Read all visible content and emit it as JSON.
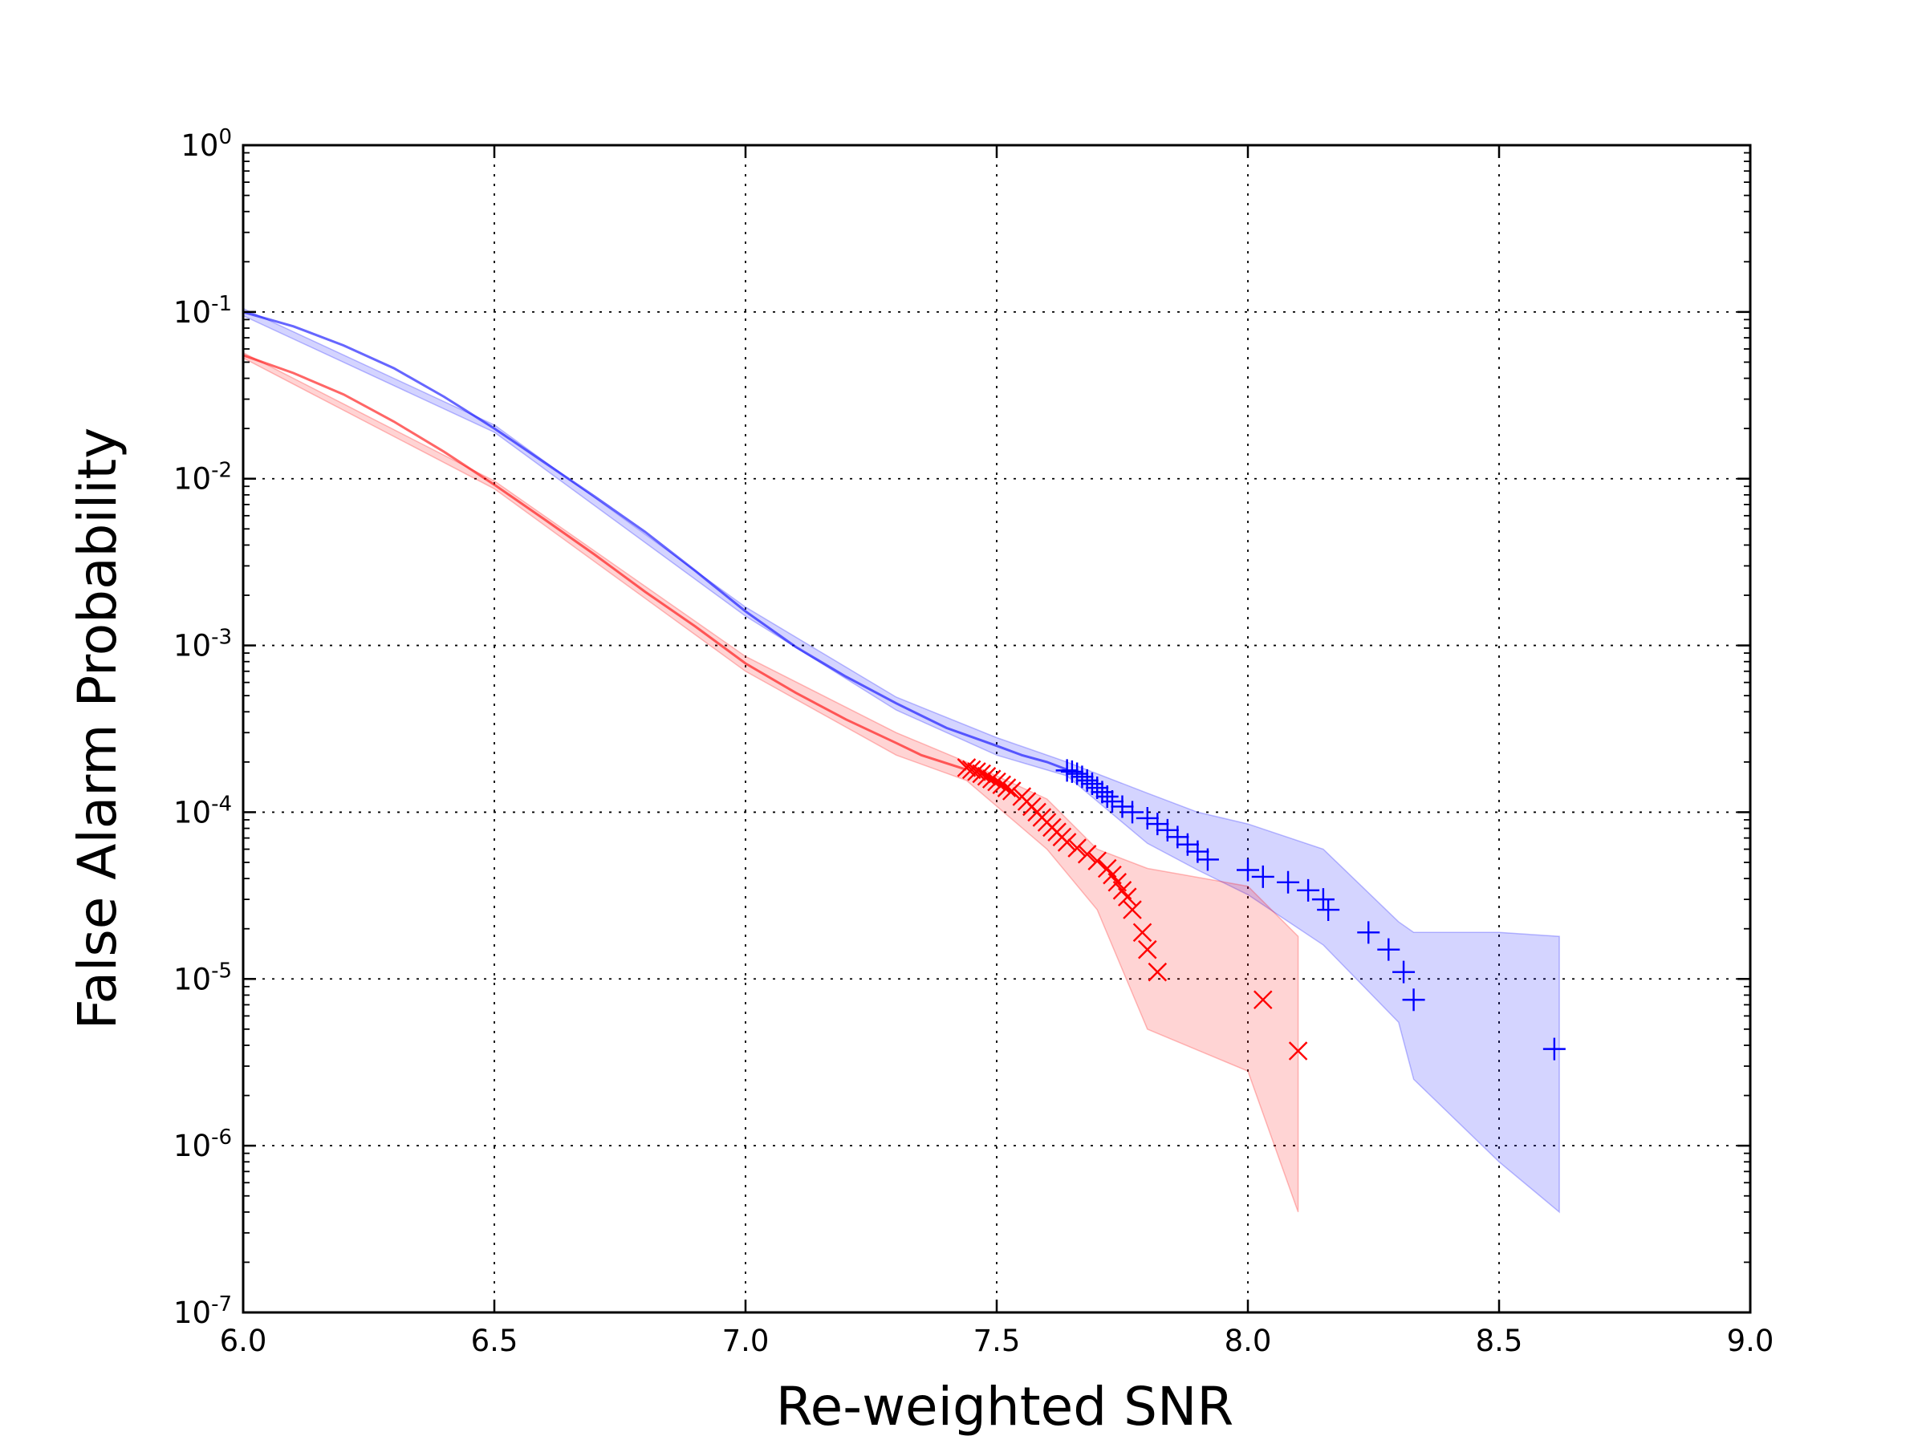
{
  "chart_data": {
    "type": "line",
    "title": "",
    "xlabel": "Re-weighted SNR",
    "ylabel": "False Alarm Probability",
    "xlim": [
      6.0,
      9.0
    ],
    "ylim_log10": [
      -7,
      0
    ],
    "yscale": "log",
    "grid": true,
    "x_ticks": [
      6.0,
      6.5,
      7.0,
      7.5,
      8.0,
      8.5,
      9.0
    ],
    "x_tick_labels": [
      "6.0",
      "6.5",
      "7.0",
      "7.5",
      "8.0",
      "8.5",
      "9.0"
    ],
    "y_ticks": [
      {
        "base": "10",
        "exp": "0",
        "log": 0
      },
      {
        "base": "10",
        "exp": "-1",
        "log": -1
      },
      {
        "base": "10",
        "exp": "-2",
        "log": -2
      },
      {
        "base": "10",
        "exp": "-3",
        "log": -3
      },
      {
        "base": "10",
        "exp": "-4",
        "log": -4
      },
      {
        "base": "10",
        "exp": "-5",
        "log": -5
      },
      {
        "base": "10",
        "exp": "-6",
        "log": -6
      },
      {
        "base": "10",
        "exp": "-7",
        "log": -7
      }
    ],
    "series": [
      {
        "name": "blue",
        "color": "#0000ff",
        "marker": "plus",
        "line": {
          "x": [
            6.0,
            6.1,
            6.2,
            6.3,
            6.4,
            6.5,
            6.6,
            6.7,
            6.8,
            6.9,
            7.0,
            7.1,
            7.2,
            7.3,
            7.4,
            7.5,
            7.55,
            7.6,
            7.64
          ],
          "y": [
            0.1,
            0.082,
            0.063,
            0.046,
            0.031,
            0.02,
            0.0125,
            0.0078,
            0.0048,
            0.0028,
            0.0016,
            0.00098,
            0.00065,
            0.00045,
            0.00032,
            0.00025,
            0.00022,
            0.0002,
            0.00018
          ]
        },
        "band": {
          "x": [
            6.0,
            6.5,
            7.0,
            7.3,
            7.5,
            7.64,
            7.8,
            7.9,
            8.0,
            8.15,
            8.3,
            8.33,
            8.5,
            8.62
          ],
          "upper": [
            0.105,
            0.021,
            0.0017,
            0.00049,
            0.00028,
            0.0002,
            0.00013,
            0.0001,
            8.5e-05,
            6e-05,
            2.2e-05,
            1.9e-05,
            1.9e-05,
            1.8e-05
          ],
          "lower": [
            0.095,
            0.019,
            0.0015,
            0.00041,
            0.00022,
            0.000165,
            6.5e-05,
            4.5e-05,
            3.2e-05,
            1.6e-05,
            5.5e-06,
            2.5e-06,
            8e-07,
            4e-07
          ]
        },
        "points": {
          "x": [
            7.64,
            7.65,
            7.66,
            7.67,
            7.68,
            7.69,
            7.7,
            7.71,
            7.72,
            7.73,
            7.75,
            7.77,
            7.8,
            7.82,
            7.84,
            7.86,
            7.88,
            7.9,
            7.92,
            8.0,
            8.03,
            8.08,
            8.12,
            8.15,
            8.16,
            8.24,
            8.28,
            8.31,
            8.33,
            8.61
          ],
          "y": [
            0.000178,
            0.000175,
            0.00017,
            0.000163,
            0.000155,
            0.000148,
            0.00014,
            0.000132,
            0.000124,
            0.000116,
            0.000108,
            0.0001,
            9.2e-05,
            8.5e-05,
            7.8e-05,
            7.1e-05,
            6.4e-05,
            5.8e-05,
            5.2e-05,
            4.5e-05,
            4.1e-05,
            3.8e-05,
            3.4e-05,
            3e-05,
            2.6e-05,
            1.9e-05,
            1.5e-05,
            1.1e-05,
            7.5e-06,
            3.8e-06
          ]
        }
      },
      {
        "name": "red",
        "color": "#ff0000",
        "marker": "x",
        "line": {
          "x": [
            6.0,
            6.1,
            6.2,
            6.3,
            6.4,
            6.5,
            6.6,
            6.7,
            6.8,
            6.9,
            7.0,
            7.1,
            7.2,
            7.3,
            7.35,
            7.44
          ],
          "y": [
            0.055,
            0.043,
            0.032,
            0.022,
            0.0145,
            0.0092,
            0.0057,
            0.0035,
            0.0021,
            0.0013,
            0.00078,
            0.00052,
            0.00036,
            0.00026,
            0.00022,
            0.00018
          ]
        },
        "band": {
          "x": [
            6.0,
            6.5,
            7.0,
            7.3,
            7.44,
            7.6,
            7.7,
            7.8,
            8.0,
            8.1
          ],
          "upper": [
            0.057,
            0.0097,
            0.00086,
            0.0003,
            0.0002,
            0.00012,
            6e-05,
            4.6e-05,
            3.6e-05,
            1.8e-05
          ],
          "lower": [
            0.053,
            0.0087,
            0.0007,
            0.00022,
            0.000155,
            6e-05,
            2.6e-05,
            5e-06,
            2.8e-06,
            4e-07
          ]
        },
        "points": {
          "x": [
            7.44,
            7.45,
            7.46,
            7.47,
            7.48,
            7.49,
            7.5,
            7.51,
            7.52,
            7.53,
            7.55,
            7.56,
            7.57,
            7.58,
            7.59,
            7.6,
            7.61,
            7.62,
            7.63,
            7.64,
            7.66,
            7.68,
            7.7,
            7.72,
            7.73,
            7.74,
            7.75,
            7.76,
            7.77,
            7.79,
            7.8,
            7.82,
            8.03,
            8.1
          ],
          "y": [
            0.000185,
            0.00018,
            0.000175,
            0.00017,
            0.000164,
            0.000158,
            0.000152,
            0.000146,
            0.00014,
            0.000134,
            0.000124,
            0.000116,
            0.000108,
            0.0001,
            9.3e-05,
            8.7e-05,
            8.1e-05,
            7.6e-05,
            7.1e-05,
            6.6e-05,
            6.1e-05,
            5.6e-05,
            5.1e-05,
            4.6e-05,
            4.2e-05,
            3.8e-05,
            3.4e-05,
            3.1e-05,
            2.6e-05,
            1.9e-05,
            1.5e-05,
            1.1e-05,
            7.5e-06,
            3.7e-06
          ]
        }
      }
    ]
  }
}
